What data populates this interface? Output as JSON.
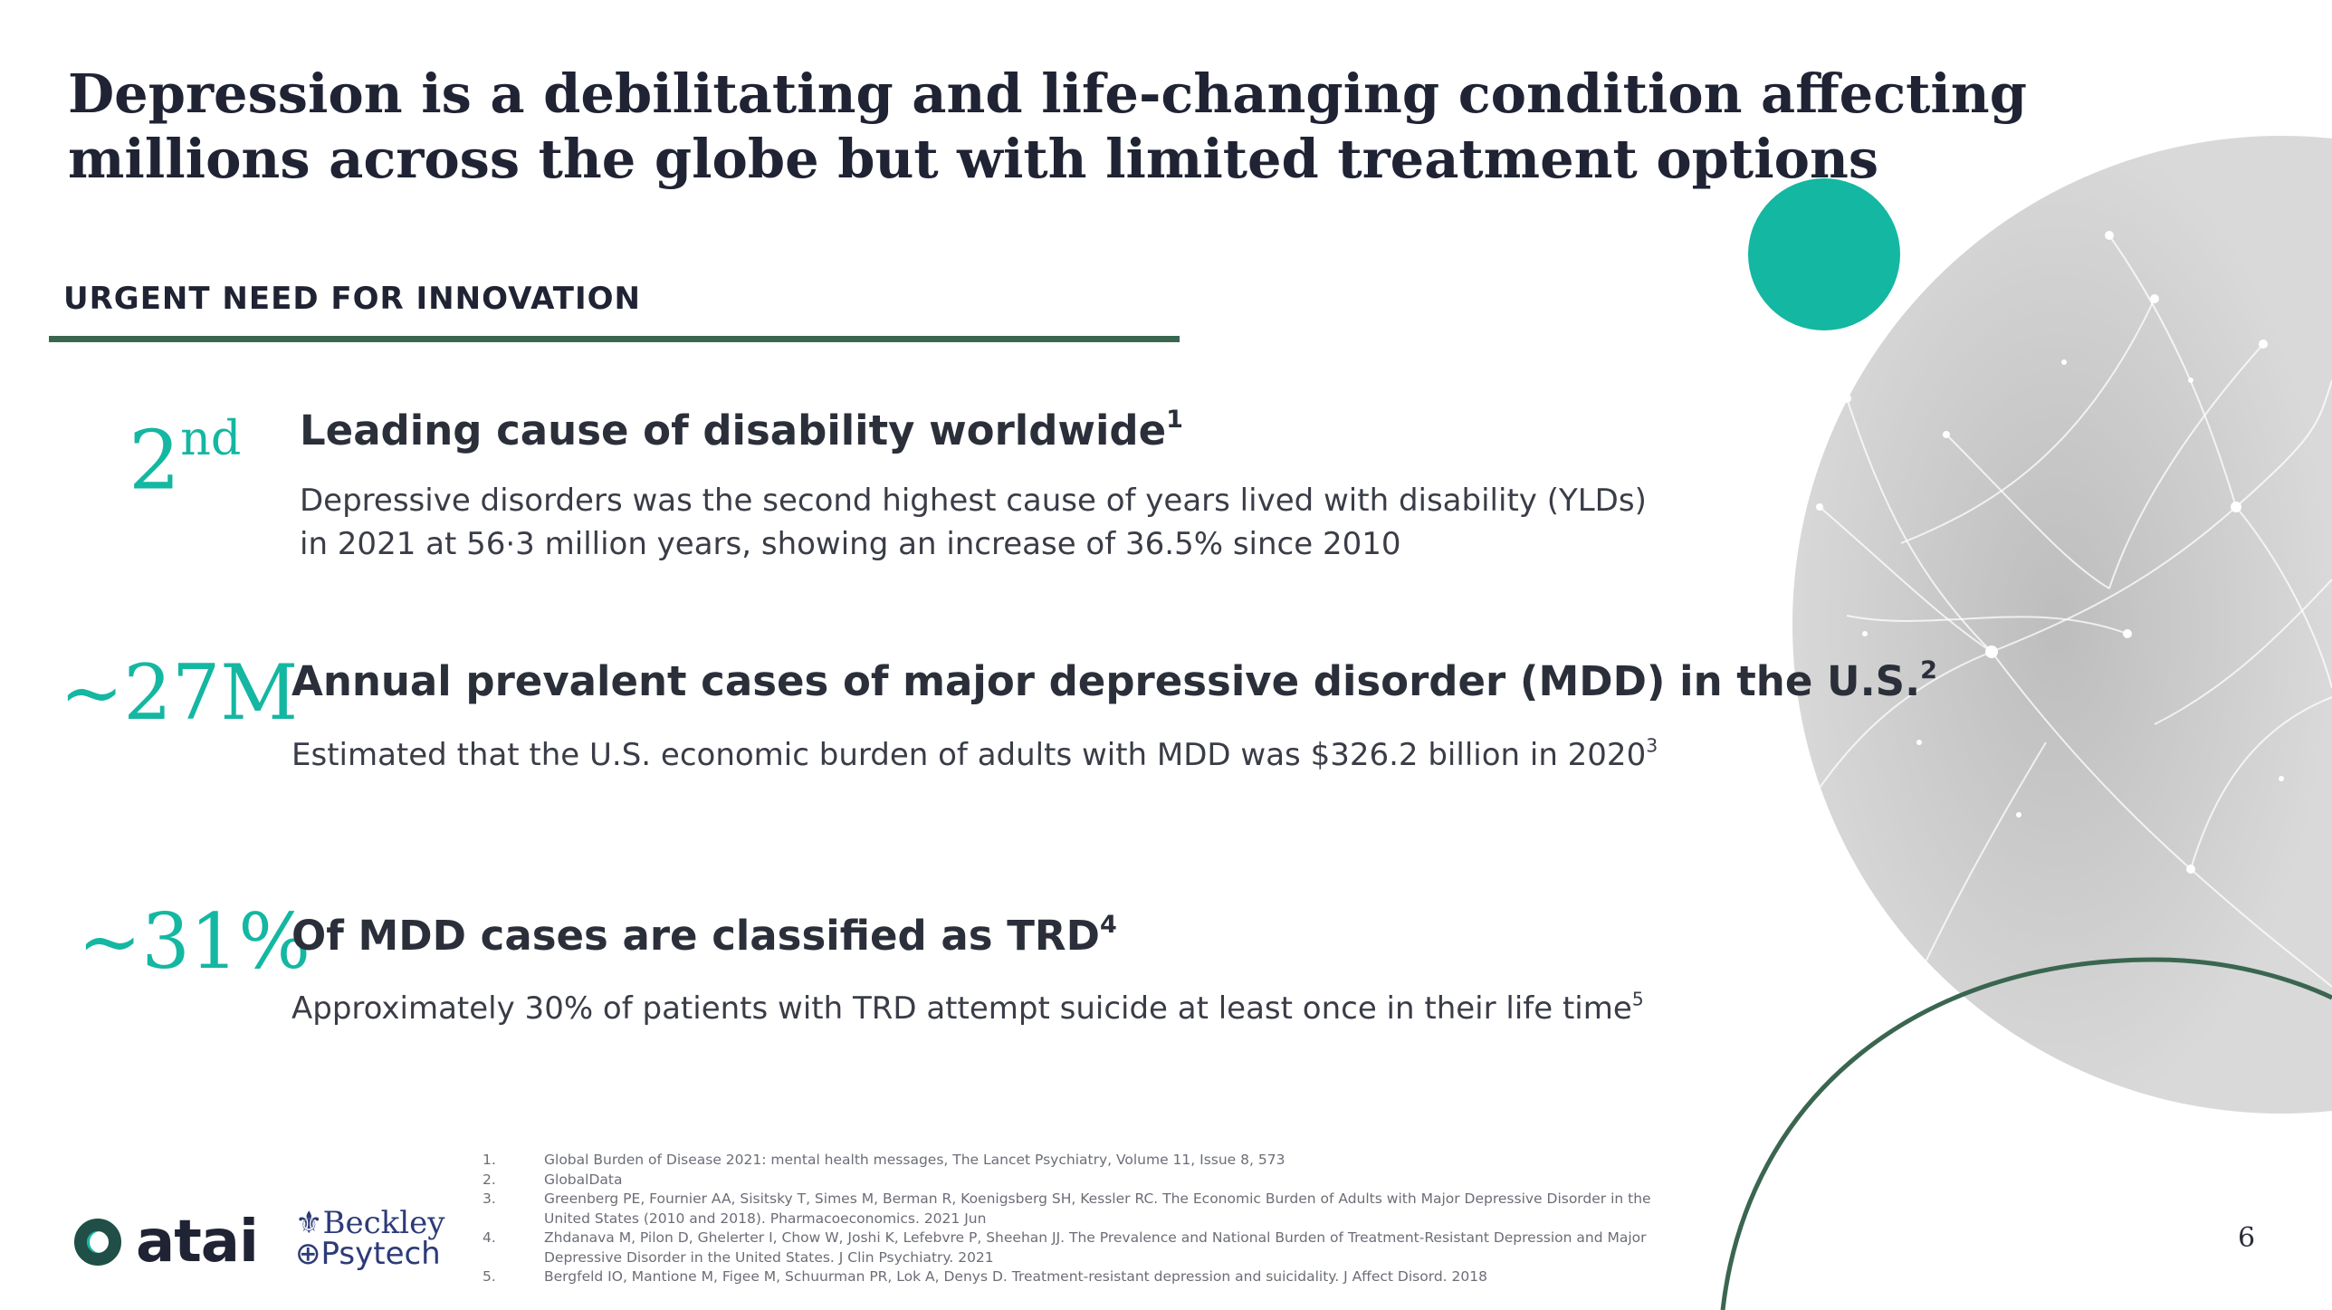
{
  "slide": {
    "title": "Depression is a debilitating and life-changing condition affecting millions across the globe but with limited treatment options",
    "section_label": "URGENT NEED FOR INNOVATION",
    "page_number": "6"
  },
  "stats": [
    {
      "value_main": "2",
      "value_suffix": "nd",
      "heading": "Leading cause of disability worldwide",
      "heading_ref": "1",
      "body": "Depressive disorders was the second highest cause of years lived with disability (YLDs) in 2021 at 56·3 million years, showing an increase of 36.5% since 2010",
      "body_ref": ""
    },
    {
      "value_main": "~27M",
      "heading": "Annual prevalent cases of major depressive disorder (MDD) in the U.S.",
      "heading_ref": "2",
      "body": "Estimated that the U.S. economic burden of adults with MDD was $326.2 billion in 2020",
      "body_ref": "3"
    },
    {
      "value_main": "~31%",
      "heading": "Of MDD cases are classified as TRD",
      "heading_ref": "4",
      "body": "Approximately 30% of patients with TRD attempt suicide at least once in their life time",
      "body_ref": "5"
    }
  ],
  "footnotes": [
    {
      "num": "1.",
      "text": "Global Burden of Disease 2021: mental health messages, The Lancet Psychiatry, Volume 11, Issue 8, 573"
    },
    {
      "num": "2.",
      "text": "GlobalData"
    },
    {
      "num": "3.",
      "text": "Greenberg PE, Fournier AA, Sisitsky T, Simes M, Berman R, Koenigsberg SH, Kessler RC. The Economic Burden of Adults with Major Depressive Disorder in the United States (2010 and 2018). Pharmacoeconomics. 2021 Jun"
    },
    {
      "num": "4.",
      "text": "Zhdanava M, Pilon D, Ghelerter I, Chow W, Joshi K, Lefebvre P, Sheehan JJ. The Prevalence and National Burden of Treatment-Resistant Depression and Major Depressive Disorder in the United States. J Clin Psychiatry. 2021"
    },
    {
      "num": "5.",
      "text": "Bergfeld IO, Mantione M, Figee M, Schuurman PR, Lok A, Denys D. Treatment-resistant depression and suicidality. J Affect Disord. 2018"
    }
  ],
  "logos": {
    "atai": "atai",
    "beckley_line1": "Beckley",
    "beckley_line2": "Psytech"
  },
  "colors": {
    "accent_teal": "#14b7a1",
    "accent_green": "#3a6650",
    "heading_dark": "#1f2333"
  },
  "icons": [
    "neuron-image",
    "teal-dot",
    "arc-decoration",
    "atai-logo-icon",
    "beckley-logo-icon"
  ]
}
